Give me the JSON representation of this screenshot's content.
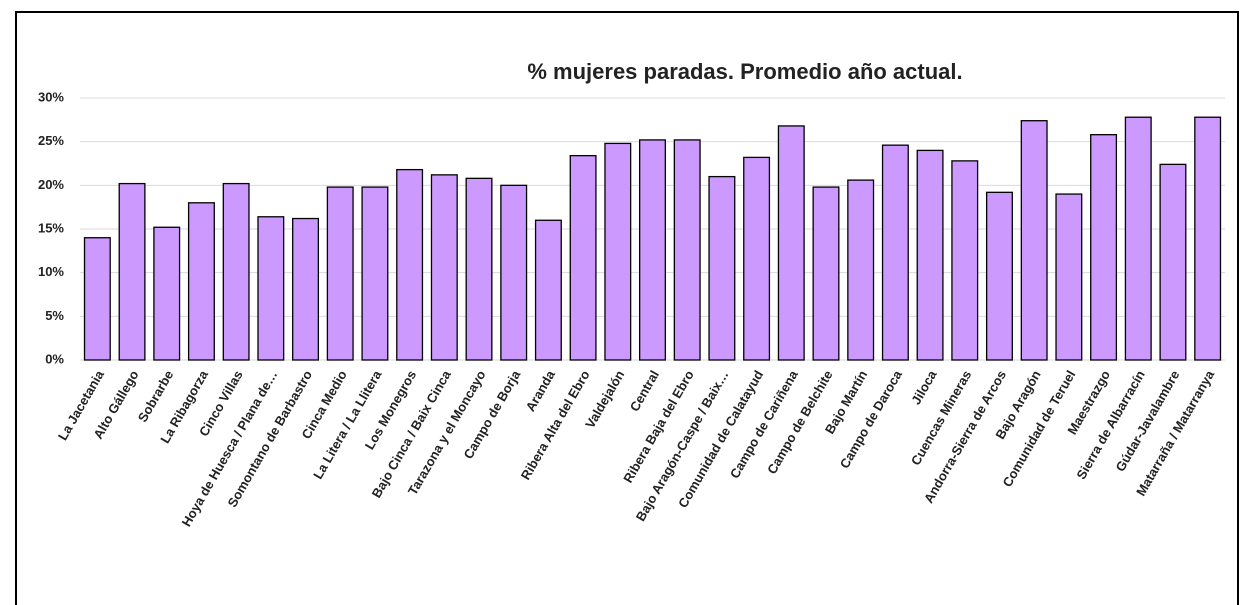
{
  "chart_data": {
    "type": "bar",
    "title": "% mujeres paradas. Promedio año actual.",
    "categories": [
      "La Jacetania",
      "Alto Gállego",
      "Sobrarbe",
      "La Ribagorza",
      "Cinco Villas",
      "Hoya de Huesca / Plana de…",
      "Somontano de Barbastro",
      "Cinca Medio",
      "La Litera / La Llitera",
      "Los Monegros",
      "Bajo Cinca / Baix Cinca",
      "Tarazona y el Moncayo",
      "Campo de Borja",
      "Aranda",
      "Ribera Alta del Ebro",
      "Valdejalón",
      "Central",
      "Ribera Baja del Ebro",
      "Bajo Aragón-Caspe / Baix…",
      "Comunidad de Calatayud",
      "Campo de Cariñena",
      "Campo de Belchite",
      "Bajo Martín",
      "Campo de Daroca",
      "Jiloca",
      "Cuencas Mineras",
      "Andorra-Sierra de Arcos",
      "Bajo Aragón",
      "Comunidad de Teruel",
      "Maestrazgo",
      "Sierra de Albarracín",
      "Gúdar-Javalambre",
      "Matarraña / Matarranya"
    ],
    "values": [
      14,
      20.2,
      15.2,
      18,
      20.2,
      16.4,
      16.2,
      19.8,
      19.8,
      21.8,
      21.2,
      20.8,
      20,
      16,
      23.4,
      24.8,
      25.2,
      25.2,
      21,
      23.2,
      26.8,
      19.8,
      20.6,
      24.6,
      24,
      22.8,
      19.2,
      27.4,
      19,
      25.8,
      27.8,
      22.4,
      27.8
    ],
    "color": "#cc99ff",
    "ylim": [
      0,
      30
    ],
    "yticks": [
      {
        "value": 0,
        "label": "0%"
      },
      {
        "value": 5,
        "label": "5%"
      },
      {
        "value": 10,
        "label": "10%"
      },
      {
        "value": 15,
        "label": "15%"
      },
      {
        "value": 20,
        "label": "20%"
      },
      {
        "value": 25,
        "label": "25%"
      },
      {
        "value": 30,
        "label": "30%"
      }
    ],
    "grid": true
  }
}
